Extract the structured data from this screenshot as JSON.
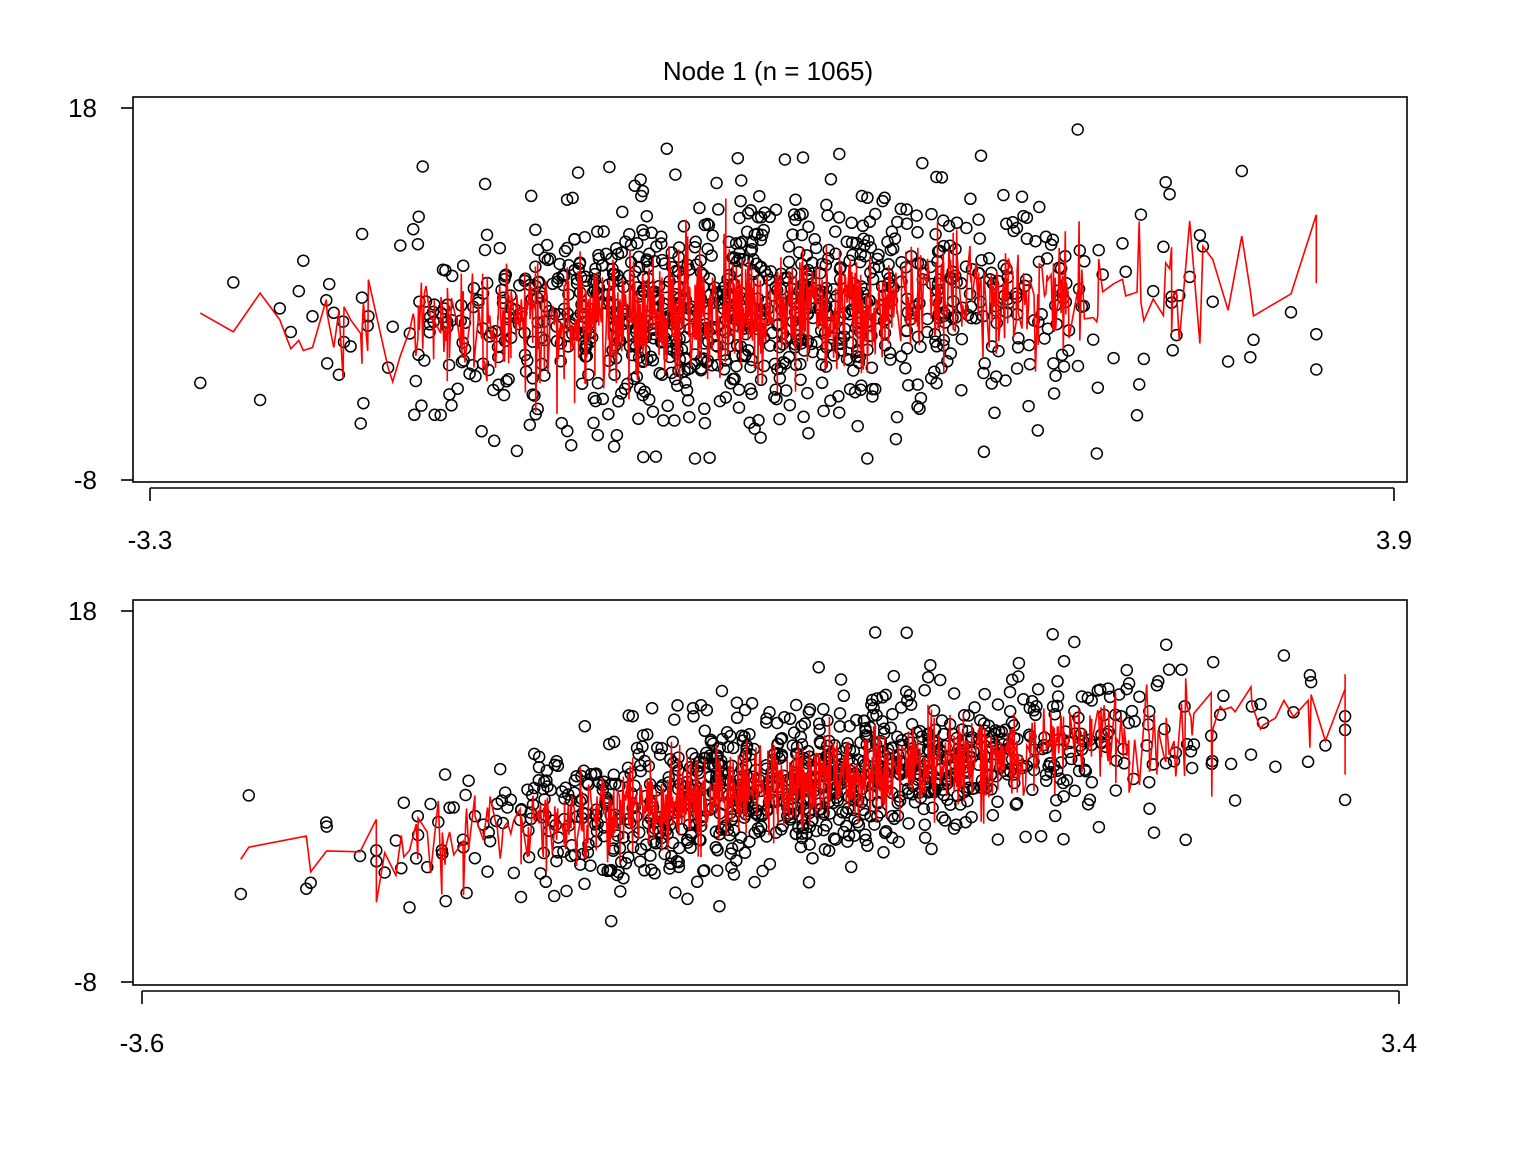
{
  "title": "Node 1 (n = 1065)",
  "colors": {
    "points": "#000000",
    "fit_line": "#ff0000",
    "axes": "#000000",
    "background": "#ffffff"
  },
  "chart_data": [
    {
      "type": "scatter",
      "title": "Node 1 (n = 1065)",
      "xlabel": "",
      "ylabel": "",
      "xlim": [
        -3.3,
        3.9
      ],
      "ylim": [
        -8,
        18
      ],
      "x_ticks": [
        -3.3,
        3.9
      ],
      "y_ticks": [
        18,
        -8
      ],
      "x_tick_labels": [
        "-3.3",
        "3.9"
      ],
      "y_tick_labels": [
        "18",
        "-8"
      ],
      "grid": false,
      "series": [
        {
          "kind": "points",
          "marker": "open-circle",
          "trend": {
            "x0": -3.3,
            "y0": 2.0,
            "x1": 3.9,
            "y1": 6.0
          },
          "spread": 3.8,
          "count": 1065
        },
        {
          "kind": "fitted-line",
          "color": "#ff0000",
          "sorted_by_x": true
        }
      ]
    },
    {
      "type": "scatter",
      "title": "",
      "xlabel": "",
      "ylabel": "",
      "xlim": [
        -3.6,
        3.4
      ],
      "ylim": [
        -8,
        18
      ],
      "x_ticks": [
        -3.6,
        3.4
      ],
      "y_ticks": [
        18,
        -8
      ],
      "x_tick_labels": [
        "-3.6",
        "3.4"
      ],
      "y_tick_labels": [
        "18",
        "-8"
      ],
      "grid": false,
      "series": [
        {
          "kind": "points",
          "marker": "open-circle",
          "trend": {
            "x0": -3.6,
            "y0": -1.0,
            "x1": 3.4,
            "y1": 12.0
          },
          "spread": 2.8,
          "count": 1065
        },
        {
          "kind": "fitted-line",
          "color": "#ff0000",
          "sorted_by_x": true
        }
      ]
    }
  ]
}
